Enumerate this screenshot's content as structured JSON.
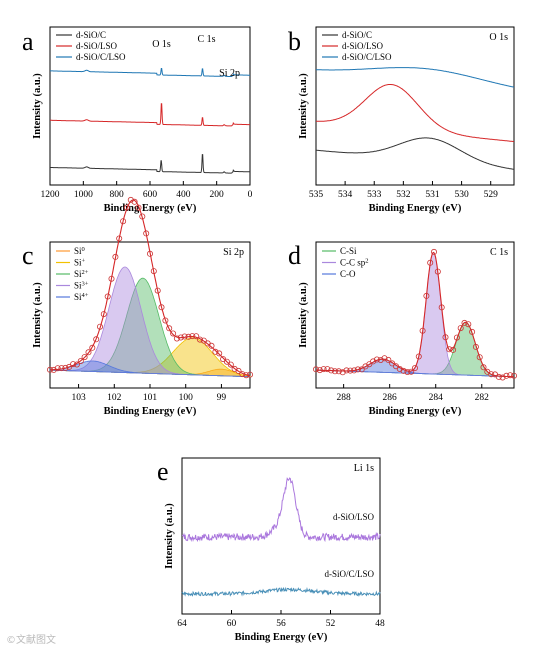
{
  "watermark": "©文献图文",
  "chart_data": [
    {
      "panel": "a",
      "type": "line",
      "xlabel": "Binding Energy (eV)",
      "ylabel": "Intensity (a.u.)",
      "xlim": [
        1200,
        0
      ],
      "x_reversed": true,
      "xticks": [
        1200,
        1000,
        800,
        600,
        400,
        200,
        0
      ],
      "legend_position": "top-left",
      "annotations": [
        {
          "text": "O 1s",
          "x": 531
        },
        {
          "text": "C 1s",
          "x": 285
        },
        {
          "text": "Si 2p",
          "x": 102
        }
      ],
      "series": [
        {
          "name": "d-SiO/C",
          "color": "#333333",
          "offset": 0.0,
          "peaks": [
            [
              980,
              0.06,
              10
            ],
            [
              533,
              0.5,
              3
            ],
            [
              285,
              0.82,
              3
            ],
            [
              155,
              0.05,
              4
            ],
            [
              102,
              0.06,
              4
            ]
          ]
        },
        {
          "name": "d-SiO/LSO",
          "color": "#d62728",
          "offset": 0.42,
          "peaks": [
            [
              980,
              0.06,
              10
            ],
            [
              531,
              0.95,
              3
            ],
            [
              285,
              0.35,
              3
            ],
            [
              155,
              0.05,
              4
            ],
            [
              102,
              0.06,
              4
            ]
          ]
        },
        {
          "name": "d-SiO/C/LSO",
          "color": "#1f77b4",
          "offset": 0.86,
          "peaks": [
            [
              980,
              0.06,
              10
            ],
            [
              531,
              0.3,
              3
            ],
            [
              285,
              0.32,
              3
            ],
            [
              155,
              0.05,
              4
            ],
            [
              102,
              0.05,
              4
            ]
          ]
        }
      ]
    },
    {
      "panel": "b",
      "type": "line",
      "title": "O 1s",
      "xlabel": "Binding Energy (eV)",
      "ylabel": "Intensity (a.u.)",
      "xlim": [
        535,
        528.2
      ],
      "x_reversed": true,
      "xticks": [
        535,
        534,
        533,
        532,
        531,
        530,
        529
      ],
      "legend_position": "top-left",
      "series": [
        {
          "name": "d-SiO/C",
          "color": "#333333",
          "offset": 0.0,
          "center": 531.1,
          "height": 0.27,
          "width": 1.05
        },
        {
          "name": "d-SiO/LSO",
          "color": "#d62728",
          "offset": 0.28,
          "center": 532.4,
          "height": 0.52,
          "width": 0.9
        },
        {
          "name": "d-SiO/C/LSO",
          "color": "#1f77b4",
          "offset": 0.78,
          "center": 531.2,
          "height": 0.16,
          "width": 1.9
        }
      ]
    },
    {
      "panel": "c",
      "type": "area",
      "title": "Si 2p",
      "xlabel": "Binding Energy (eV)",
      "ylabel": "Intensity (a.u.)",
      "xlim": [
        103.8,
        98.2
      ],
      "x_reversed": true,
      "xticks": [
        103,
        102,
        101,
        100,
        99
      ],
      "legend_position": "top-left",
      "components": [
        {
          "name": "Si",
          "sup": "0",
          "color": "#ff9933",
          "center": 99.0,
          "height": 0.05,
          "width": 0.35
        },
        {
          "name": "Si",
          "sup": "+",
          "color": "#f2c200",
          "center": 99.8,
          "height": 0.28,
          "width": 0.55
        },
        {
          "name": "Si",
          "sup": "2+",
          "color": "#55bb66",
          "center": 101.2,
          "height": 0.72,
          "width": 0.45
        },
        {
          "name": "Si",
          "sup": "3+",
          "color": "#aa88dd",
          "center": 101.7,
          "height": 0.8,
          "width": 0.45
        },
        {
          "name": "Si",
          "sup": "4+",
          "color": "#5577dd",
          "center": 102.6,
          "height": 0.08,
          "width": 0.45
        }
      ]
    },
    {
      "panel": "d",
      "type": "area",
      "title": "C 1s",
      "xlabel": "Binding Energy (eV)",
      "ylabel": "Intensity (a.u.)",
      "xlim": [
        289.2,
        280.6
      ],
      "x_reversed": true,
      "xticks": [
        288,
        286,
        284,
        282
      ],
      "legend_position": "top-left",
      "components": [
        {
          "name": "C-Si",
          "sup": "",
          "color": "#55bb66",
          "center": 282.7,
          "height": 0.4,
          "width": 0.42
        },
        {
          "name": "C-C sp",
          "sup": "2",
          "color": "#aa88dd",
          "center": 284.1,
          "height": 0.92,
          "width": 0.32
        },
        {
          "name": "C-O",
          "sup": "",
          "color": "#5577dd",
          "center": 286.3,
          "height": 0.1,
          "width": 0.55
        }
      ]
    },
    {
      "panel": "e",
      "type": "line",
      "title": "Li 1s",
      "xlabel": "Binding Energy (eV)",
      "ylabel": "Intensity (a.u.)",
      "xlim": [
        64,
        48
      ],
      "x_reversed": true,
      "xticks": [
        64,
        60,
        56,
        52,
        48
      ],
      "series": [
        {
          "name": "d-SiO/LSO",
          "color": "#aa77dd",
          "offset": 0.5,
          "center": 55.3,
          "height": 0.4,
          "width": 0.5,
          "noise": 0.025
        },
        {
          "name": "d-SiO/C/LSO",
          "color": "#4a90b8",
          "offset": 0.1,
          "center": 55.3,
          "height": 0.03,
          "width": 2.0,
          "noise": 0.012
        }
      ]
    }
  ]
}
